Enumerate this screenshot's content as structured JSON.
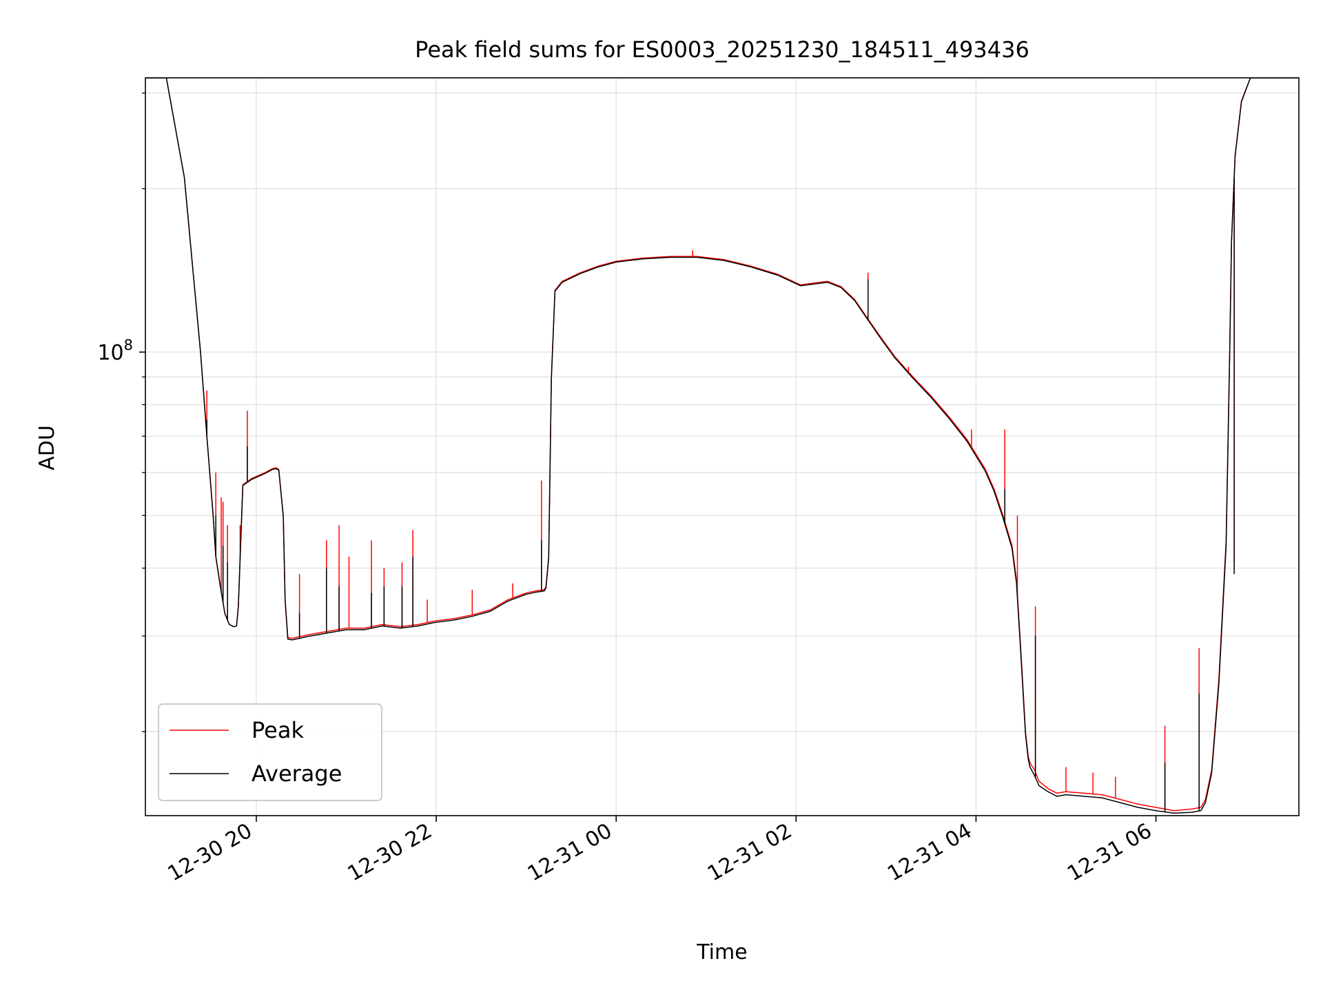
{
  "chart_data": {
    "type": "line",
    "title": "Peak field sums for ES0003_20251230_184511_493436",
    "xlabel": "Time",
    "ylabel": "ADU",
    "yscale": "log",
    "ylim": [
      14000000,
      320000000
    ],
    "xlim": [
      18.767,
      31.589
    ],
    "x_units": "hours since 2025-12-30 00:00",
    "x_ticks": [
      {
        "value": 20,
        "label": "12-30 20"
      },
      {
        "value": 22,
        "label": "12-30 22"
      },
      {
        "value": 24,
        "label": "12-31 00"
      },
      {
        "value": 26,
        "label": "12-31 02"
      },
      {
        "value": 28,
        "label": "12-31 04"
      },
      {
        "value": 30,
        "label": "12-31 06"
      }
    ],
    "y_ticks": [
      {
        "value": 100000000,
        "base": "10",
        "exp": "8"
      }
    ],
    "y_minor_ticks": [
      20000000,
      30000000,
      40000000,
      50000000,
      60000000,
      70000000,
      80000000,
      90000000,
      200000000,
      300000000
    ],
    "grid": true,
    "legend": {
      "position": "lower-left",
      "entries": [
        "Peak",
        "Average"
      ]
    },
    "series": [
      {
        "name": "Peak",
        "color": "#ff0000",
        "x": [
          18.77,
          19.0,
          19.2,
          19.38,
          19.45,
          19.52,
          19.55,
          19.6,
          19.65,
          19.7,
          19.75,
          19.78,
          19.8,
          19.85,
          19.95,
          20.1,
          20.18,
          20.22,
          20.25,
          20.3,
          20.32,
          20.35,
          20.4,
          20.6,
          20.8,
          21.0,
          21.2,
          21.4,
          21.6,
          21.8,
          22.0,
          22.2,
          22.4,
          22.6,
          22.8,
          23.0,
          23.1,
          23.2,
          23.22,
          23.25,
          23.28,
          23.32,
          23.4,
          23.6,
          23.8,
          24.0,
          24.3,
          24.6,
          24.9,
          25.2,
          25.5,
          25.8,
          26.05,
          26.2,
          26.35,
          26.5,
          26.65,
          26.8,
          26.95,
          27.1,
          27.3,
          27.5,
          27.7,
          27.9,
          28.1,
          28.2,
          28.3,
          28.4,
          28.45,
          28.5,
          28.55,
          28.58,
          28.6,
          28.65,
          28.7,
          28.8,
          28.9,
          29.0,
          29.2,
          29.4,
          29.6,
          29.8,
          30.0,
          30.2,
          30.4,
          30.5,
          30.55,
          30.62,
          30.7,
          30.78,
          30.82,
          30.84,
          30.88,
          30.95,
          31.05,
          31.15,
          31.25,
          31.35,
          31.45,
          31.55,
          31.589
        ],
        "values": [
          320000000,
          320000000,
          210000000,
          100000000,
          70000000,
          50000000,
          42000000,
          37000000,
          33000000,
          31500000,
          31200000,
          31300000,
          34000000,
          57000000,
          58500000,
          60000000,
          61000000,
          61200000,
          60800000,
          50000000,
          35000000,
          29800000,
          29700000,
          30200000,
          30600000,
          31000000,
          31000000,
          31500000,
          31200000,
          31500000,
          32000000,
          32300000,
          32800000,
          33500000,
          35000000,
          36000000,
          36300000,
          36500000,
          37000000,
          42000000,
          90000000,
          130000000,
          135000000,
          140000000,
          144000000,
          147000000,
          149000000,
          150000000,
          150000000,
          148000000,
          144000000,
          139000000,
          133000000,
          134000000,
          135000000,
          132000000,
          125000000,
          115000000,
          106000000,
          98000000,
          90000000,
          83000000,
          76000000,
          69000000,
          61000000,
          56000000,
          50000000,
          44000000,
          38000000,
          28000000,
          20000000,
          18000000,
          17500000,
          17000000,
          16200000,
          15700000,
          15400000,
          15500000,
          15400000,
          15300000,
          15000000,
          14700000,
          14500000,
          14300000,
          14400000,
          14500000,
          15000000,
          17000000,
          25000000,
          45000000,
          100000000,
          160000000,
          230000000,
          290000000,
          320000000,
          320000000,
          320000000,
          320000000,
          320000000,
          320000000,
          320000000
        ],
        "spikes": [
          {
            "x": 19.45,
            "value": 85000000
          },
          {
            "x": 19.55,
            "value": 60000000
          },
          {
            "x": 19.61,
            "value": 54000000
          },
          {
            "x": 19.63,
            "value": 53000000
          },
          {
            "x": 19.68,
            "value": 48000000
          },
          {
            "x": 19.82,
            "value": 48000000
          },
          {
            "x": 19.9,
            "value": 78000000
          },
          {
            "x": 20.48,
            "value": 39000000
          },
          {
            "x": 20.78,
            "value": 45000000
          },
          {
            "x": 20.92,
            "value": 48000000
          },
          {
            "x": 21.03,
            "value": 42000000
          },
          {
            "x": 21.28,
            "value": 45000000
          },
          {
            "x": 21.42,
            "value": 40000000
          },
          {
            "x": 21.62,
            "value": 41000000
          },
          {
            "x": 21.74,
            "value": 47000000
          },
          {
            "x": 21.9,
            "value": 35000000
          },
          {
            "x": 22.4,
            "value": 36500000
          },
          {
            "x": 22.85,
            "value": 37500000
          },
          {
            "x": 23.17,
            "value": 58000000
          },
          {
            "x": 24.85,
            "value": 154000000
          },
          {
            "x": 26.8,
            "value": 140000000
          },
          {
            "x": 27.25,
            "value": 94000000
          },
          {
            "x": 27.95,
            "value": 72000000
          },
          {
            "x": 28.32,
            "value": 72000000
          },
          {
            "x": 28.46,
            "value": 50000000
          },
          {
            "x": 28.66,
            "value": 34000000
          },
          {
            "x": 29.0,
            "value": 17200000
          },
          {
            "x": 29.3,
            "value": 16800000
          },
          {
            "x": 29.55,
            "value": 16500000
          },
          {
            "x": 30.1,
            "value": 20500000
          },
          {
            "x": 30.48,
            "value": 28500000
          },
          {
            "x": 30.87,
            "value": 41000000
          }
        ]
      },
      {
        "name": "Average",
        "color": "#000000",
        "x": [
          18.77,
          19.0,
          19.2,
          19.38,
          19.45,
          19.52,
          19.55,
          19.6,
          19.65,
          19.7,
          19.75,
          19.78,
          19.8,
          19.85,
          19.95,
          20.1,
          20.18,
          20.22,
          20.25,
          20.3,
          20.32,
          20.35,
          20.4,
          20.6,
          20.8,
          21.0,
          21.2,
          21.4,
          21.6,
          21.8,
          22.0,
          22.2,
          22.4,
          22.6,
          22.8,
          23.0,
          23.1,
          23.2,
          23.22,
          23.25,
          23.28,
          23.32,
          23.4,
          23.6,
          23.8,
          24.0,
          24.3,
          24.6,
          24.9,
          25.2,
          25.5,
          25.8,
          26.05,
          26.2,
          26.35,
          26.5,
          26.65,
          26.8,
          26.95,
          27.1,
          27.3,
          27.5,
          27.7,
          27.9,
          28.1,
          28.2,
          28.3,
          28.4,
          28.45,
          28.5,
          28.55,
          28.58,
          28.6,
          28.65,
          28.7,
          28.8,
          28.9,
          29.0,
          29.2,
          29.4,
          29.6,
          29.8,
          30.0,
          30.2,
          30.4,
          30.5,
          30.55,
          30.62,
          30.7,
          30.78,
          30.82,
          30.84,
          30.88,
          30.95,
          31.05,
          31.15,
          31.25,
          31.35,
          31.45,
          31.55,
          31.589
        ],
        "values": [
          320000000,
          320000000,
          210000000,
          100000000,
          70000000,
          50000000,
          42000000,
          37000000,
          33000000,
          31500000,
          31200000,
          31300000,
          34000000,
          56800000,
          58300000,
          59800000,
          60800000,
          61000000,
          60600000,
          49800000,
          34800000,
          29600000,
          29500000,
          30000000,
          30400000,
          30800000,
          30800000,
          31300000,
          31000000,
          31300000,
          31800000,
          32100000,
          32600000,
          33300000,
          34800000,
          35800000,
          36100000,
          36300000,
          36800000,
          41800000,
          89500000,
          129500000,
          134500000,
          139500000,
          143500000,
          146500000,
          148500000,
          149500000,
          149500000,
          147500000,
          143500000,
          138500000,
          132500000,
          133500000,
          134500000,
          131500000,
          124500000,
          114500000,
          105500000,
          97500000,
          89500000,
          82500000,
          75500000,
          68500000,
          60500000,
          55500000,
          49500000,
          43500000,
          37500000,
          27500000,
          19800000,
          17800000,
          17200000,
          16600000,
          15900000,
          15500000,
          15200000,
          15300000,
          15200000,
          15100000,
          14800000,
          14500000,
          14300000,
          14150000,
          14200000,
          14300000,
          14800000,
          16800000,
          24500000,
          44000000,
          99000000,
          159000000,
          229000000,
          289000000,
          320000000,
          320000000,
          320000000,
          320000000,
          320000000,
          320000000,
          320000000
        ],
        "spikes": [
          {
            "x": 19.45,
            "value": 75000000
          },
          {
            "x": 19.55,
            "value": 50000000
          },
          {
            "x": 19.63,
            "value": 44000000
          },
          {
            "x": 19.68,
            "value": 41000000
          },
          {
            "x": 19.82,
            "value": 42000000
          },
          {
            "x": 19.9,
            "value": 67000000
          },
          {
            "x": 20.48,
            "value": 33000000
          },
          {
            "x": 20.78,
            "value": 40000000
          },
          {
            "x": 20.92,
            "value": 37000000
          },
          {
            "x": 21.28,
            "value": 36000000
          },
          {
            "x": 21.42,
            "value": 37000000
          },
          {
            "x": 21.62,
            "value": 37000000
          },
          {
            "x": 21.74,
            "value": 42000000
          },
          {
            "x": 23.17,
            "value": 45000000
          },
          {
            "x": 26.8,
            "value": 136000000
          },
          {
            "x": 28.32,
            "value": 56000000
          },
          {
            "x": 28.66,
            "value": 30000000
          },
          {
            "x": 30.1,
            "value": 17500000
          },
          {
            "x": 30.48,
            "value": 23500000
          },
          {
            "x": 30.87,
            "value": 39000000
          }
        ]
      }
    ]
  }
}
